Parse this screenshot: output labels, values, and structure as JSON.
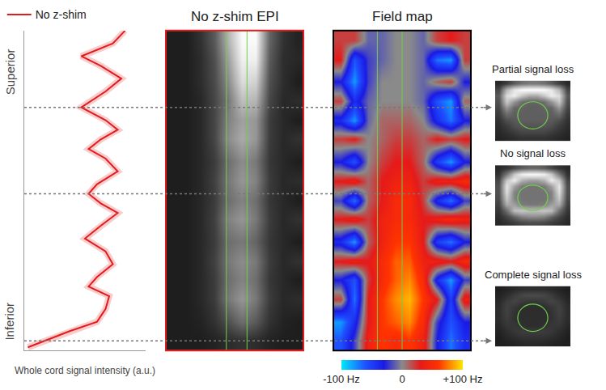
{
  "chart_data": [
    {
      "type": "line",
      "x_label": "Whole cord signal intensity (a.u.)",
      "y_labels": {
        "top": "Superior",
        "bottom": "Inferior"
      },
      "y": [
        1,
        3,
        6,
        9,
        13,
        17,
        20,
        23,
        27,
        31,
        35,
        39,
        43,
        46,
        49,
        52,
        56,
        60,
        63,
        66,
        69,
        72,
        76,
        81,
        85,
        89,
        92,
        96,
        100
      ],
      "series": [
        {
          "name": "No z-shim",
          "color": "#e41a1c",
          "values": [
            3,
            17,
            37,
            60,
            67,
            70,
            53,
            60,
            73,
            67,
            50,
            63,
            77,
            63,
            53,
            60,
            77,
            67,
            53,
            63,
            77,
            67,
            47,
            67,
            80,
            63,
            47,
            73,
            83
          ]
        }
      ],
      "xlim": [
        0,
        100
      ],
      "ylim": [
        0,
        100
      ],
      "tick_labels": false,
      "legend": "top left",
      "slice_positions": [
        76,
        49,
        3
      ]
    },
    {
      "type": "heatmap",
      "title": "No z-shim EPI",
      "color": "#e41a1c",
      "tick_labels": false,
      "x": [
        0,
        1,
        2,
        3,
        4,
        5,
        6,
        7,
        8,
        9
      ],
      "y": [
        3,
        9,
        16,
        22,
        28,
        34,
        41,
        47,
        53,
        59,
        66,
        72,
        78,
        84,
        91,
        97
      ],
      "z": [
        [
          30,
          30,
          30,
          35,
          45,
          50,
          45,
          35,
          30,
          30
        ],
        [
          30,
          30,
          35,
          50,
          80,
          110,
          90,
          50,
          35,
          30
        ],
        [
          30,
          30,
          40,
          60,
          120,
          150,
          120,
          60,
          40,
          45
        ],
        [
          30,
          30,
          40,
          60,
          110,
          130,
          110,
          55,
          40,
          30
        ],
        [
          30,
          30,
          40,
          65,
          120,
          140,
          120,
          60,
          40,
          50
        ],
        [
          30,
          30,
          40,
          60,
          110,
          120,
          100,
          55,
          40,
          30
        ],
        [
          30,
          30,
          40,
          65,
          130,
          150,
          120,
          60,
          40,
          50
        ],
        [
          30,
          30,
          40,
          60,
          110,
          130,
          110,
          55,
          40,
          30
        ],
        [
          30,
          30,
          40,
          65,
          120,
          150,
          130,
          60,
          40,
          45
        ],
        [
          30,
          30,
          40,
          60,
          110,
          140,
          120,
          55,
          40,
          30
        ],
        [
          30,
          30,
          40,
          70,
          140,
          170,
          150,
          60,
          40,
          50
        ],
        [
          30,
          30,
          40,
          70,
          130,
          160,
          150,
          60,
          40,
          30
        ],
        [
          30,
          30,
          40,
          70,
          120,
          190,
          180,
          70,
          40,
          45
        ],
        [
          30,
          30,
          45,
          75,
          140,
          220,
          210,
          80,
          45,
          30
        ],
        [
          30,
          30,
          45,
          80,
          160,
          240,
          240,
          90,
          45,
          40
        ],
        [
          30,
          30,
          50,
          90,
          180,
          250,
          250,
          100,
          50,
          35
        ]
      ],
      "zlim": [
        0,
        255
      ],
      "cord_outline": [
        3.9,
        5.4
      ]
    },
    {
      "type": "heatmap",
      "title": "Field map",
      "color": "#000000",
      "tick_labels": false,
      "x": [
        0,
        1,
        2,
        3,
        4,
        5,
        6,
        7,
        8,
        9
      ],
      "y": [
        3,
        9,
        16,
        22,
        28,
        34,
        41,
        47,
        53,
        59,
        66,
        72,
        78,
        84,
        91,
        97
      ],
      "z": [
        [
          -60,
          -20,
          40,
          60,
          50,
          60,
          40,
          -30,
          -70,
          -40
        ],
        [
          -80,
          -40,
          30,
          60,
          70,
          80,
          50,
          -20,
          -60,
          -30
        ],
        [
          20,
          -70,
          30,
          60,
          80,
          90,
          60,
          30,
          -50,
          40
        ],
        [
          -30,
          -60,
          20,
          50,
          70,
          80,
          50,
          -40,
          -80,
          -20
        ],
        [
          30,
          40,
          30,
          50,
          70,
          70,
          40,
          40,
          30,
          50
        ],
        [
          -40,
          -80,
          10,
          40,
          60,
          60,
          30,
          -50,
          -70,
          -30
        ],
        [
          30,
          40,
          20,
          40,
          50,
          50,
          30,
          40,
          50,
          40
        ],
        [
          -20,
          -70,
          10,
          30,
          50,
          50,
          20,
          -40,
          -70,
          -20
        ],
        [
          30,
          40,
          10,
          30,
          40,
          40,
          20,
          40,
          40,
          50
        ],
        [
          -30,
          -60,
          0,
          20,
          30,
          30,
          10,
          -50,
          -80,
          -30
        ],
        [
          20,
          30,
          0,
          10,
          20,
          20,
          10,
          30,
          20,
          30
        ],
        [
          -40,
          -80,
          -10,
          10,
          10,
          10,
          0,
          -40,
          -70,
          -30
        ],
        [
          20,
          -40,
          -10,
          0,
          0,
          0,
          -10,
          -60,
          -80,
          10
        ],
        [
          -30,
          -80,
          -20,
          0,
          0,
          0,
          -10,
          10,
          20,
          -30
        ],
        [
          30,
          -60,
          -20,
          -10,
          0,
          0,
          -10,
          -70,
          -80,
          20
        ],
        [
          20,
          20,
          -10,
          -10,
          0,
          0,
          -10,
          20,
          30,
          20
        ]
      ],
      "zlim": [
        -100,
        100
      ],
      "colorbar_ticks": [
        {
          "value": -100,
          "label": "-100 Hz"
        },
        0,
        {
          "value": 100,
          "label": "+100 Hz"
        }
      ],
      "cord_outline": [
        2.7,
        4.5
      ]
    },
    {
      "type": "heatmap",
      "title": "Partial signal loss",
      "tick_labels": false,
      "zlim": [
        0,
        255
      ],
      "z": [
        [
          40,
          60,
          90,
          110,
          120,
          120,
          110,
          90,
          60,
          40
        ],
        [
          70,
          180,
          230,
          250,
          255,
          255,
          250,
          230,
          180,
          70
        ],
        [
          90,
          220,
          240,
          200,
          170,
          170,
          200,
          240,
          220,
          90
        ],
        [
          80,
          200,
          150,
          110,
          100,
          100,
          110,
          150,
          200,
          80
        ],
        [
          70,
          150,
          100,
          100,
          95,
          95,
          100,
          100,
          150,
          70
        ],
        [
          60,
          110,
          95,
          95,
          95,
          95,
          95,
          95,
          110,
          60
        ],
        [
          50,
          80,
          90,
          95,
          95,
          95,
          95,
          90,
          80,
          50
        ],
        [
          45,
          60,
          80,
          85,
          85,
          85,
          85,
          80,
          60,
          45
        ],
        [
          40,
          50,
          60,
          70,
          70,
          70,
          70,
          60,
          50,
          40
        ],
        [
          35,
          40,
          45,
          50,
          50,
          50,
          50,
          45,
          40,
          35
        ]
      ],
      "cord_outline": [
        2.5,
        3,
        6.5,
        7.5
      ]
    },
    {
      "type": "heatmap",
      "title": "No signal loss",
      "tick_labels": false,
      "zlim": [
        0,
        255
      ],
      "z": [
        [
          40,
          50,
          70,
          90,
          100,
          100,
          90,
          70,
          50,
          40
        ],
        [
          50,
          120,
          200,
          240,
          250,
          250,
          240,
          200,
          120,
          50
        ],
        [
          70,
          200,
          240,
          180,
          160,
          160,
          180,
          240,
          200,
          70
        ],
        [
          80,
          230,
          160,
          120,
          115,
          115,
          120,
          160,
          230,
          80
        ],
        [
          80,
          220,
          130,
          115,
          115,
          115,
          115,
          130,
          220,
          80
        ],
        [
          75,
          200,
          130,
          115,
          115,
          115,
          115,
          130,
          200,
          75
        ],
        [
          65,
          170,
          160,
          125,
          120,
          120,
          125,
          160,
          170,
          65
        ],
        [
          55,
          110,
          190,
          200,
          190,
          190,
          200,
          190,
          110,
          55
        ],
        [
          45,
          70,
          100,
          130,
          140,
          140,
          130,
          100,
          70,
          45
        ],
        [
          40,
          50,
          60,
          70,
          75,
          75,
          70,
          60,
          50,
          40
        ]
      ],
      "cord_outline": [
        2.5,
        2.8,
        6.5,
        7
      ]
    },
    {
      "type": "heatmap",
      "title": "Complete signal loss",
      "tick_labels": false,
      "zlim": [
        0,
        255
      ],
      "z": [
        [
          30,
          35,
          40,
          45,
          45,
          45,
          45,
          40,
          35,
          30
        ],
        [
          35,
          45,
          60,
          70,
          75,
          75,
          70,
          60,
          45,
          35
        ],
        [
          40,
          60,
          70,
          60,
          55,
          55,
          60,
          70,
          60,
          40
        ],
        [
          45,
          65,
          55,
          45,
          45,
          45,
          45,
          55,
          65,
          45
        ],
        [
          45,
          65,
          50,
          45,
          45,
          45,
          45,
          50,
          65,
          45
        ],
        [
          45,
          60,
          50,
          45,
          45,
          45,
          45,
          50,
          60,
          45
        ],
        [
          40,
          55,
          55,
          50,
          45,
          45,
          50,
          55,
          55,
          40
        ],
        [
          35,
          45,
          55,
          60,
          60,
          60,
          60,
          55,
          45,
          35
        ],
        [
          30,
          40,
          45,
          50,
          50,
          50,
          50,
          45,
          40,
          30
        ],
        [
          30,
          32,
          35,
          38,
          40,
          40,
          38,
          35,
          32,
          30
        ]
      ],
      "cord_outline": [
        2.5,
        2.5,
        6.5,
        7
      ]
    }
  ]
}
